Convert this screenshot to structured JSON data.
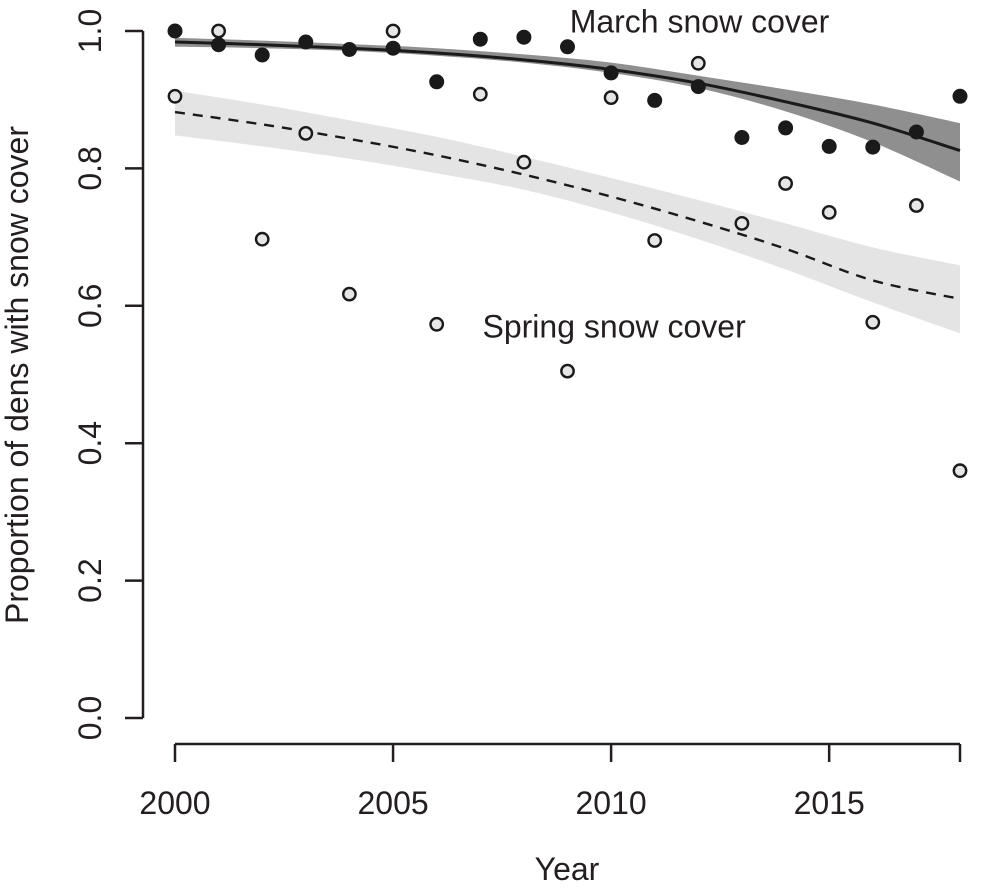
{
  "chart_data": {
    "type": "scatter",
    "title": "",
    "xlabel": "Year",
    "ylabel": "Proportion of dens with snow cover",
    "xlim": [
      2000,
      2018
    ],
    "ylim": [
      0.0,
      1.0
    ],
    "x_ticks": [
      2000,
      2005,
      2010,
      2015
    ],
    "x_tick_labels": [
      "2000",
      "2005",
      "2010",
      "2015"
    ],
    "y_ticks": [
      0.0,
      0.2,
      0.4,
      0.6,
      0.8,
      1.0
    ],
    "y_tick_labels": [
      "0.0",
      "0.2",
      "0.4",
      "0.6",
      "0.8",
      "1.0"
    ],
    "grid": false,
    "legend": "none",
    "series": [
      {
        "name": "March snow cover",
        "marker": "filled-circle",
        "color": "#1a1a1a",
        "x": [
          2000,
          2001,
          2002,
          2003,
          2004,
          2005,
          2006,
          2007,
          2008,
          2009,
          2010,
          2011,
          2012,
          2013,
          2014,
          2015,
          2016,
          2017,
          2018
        ],
        "y": [
          1.0,
          0.98,
          0.965,
          0.984,
          0.973,
          0.975,
          0.926,
          0.988,
          0.991,
          0.977,
          0.939,
          0.899,
          0.919,
          0.845,
          0.859,
          0.832,
          0.831,
          0.853,
          0.905
        ],
        "fit": {
          "style": "solid",
          "x": [
            2000,
            2002,
            2004,
            2006,
            2008,
            2010,
            2012,
            2014,
            2016,
            2018
          ],
          "y": [
            0.984,
            0.98,
            0.975,
            0.968,
            0.958,
            0.944,
            0.924,
            0.897,
            0.866,
            0.826
          ],
          "ci_lower": [
            0.977,
            0.975,
            0.971,
            0.964,
            0.954,
            0.939,
            0.917,
            0.883,
            0.838,
            0.781
          ],
          "ci_upper": [
            0.99,
            0.986,
            0.981,
            0.975,
            0.966,
            0.954,
            0.935,
            0.915,
            0.893,
            0.866
          ]
        },
        "band_color": "#8f8f8f"
      },
      {
        "name": "Spring snow cover",
        "marker": "open-circle",
        "color": "#e6e6e6",
        "x": [
          2000,
          2001,
          2002,
          2003,
          2004,
          2005,
          2006,
          2007,
          2008,
          2009,
          2010,
          2011,
          2012,
          2013,
          2014,
          2015,
          2016,
          2017,
          2018
        ],
        "y": [
          0.905,
          1.0,
          0.697,
          0.851,
          0.617,
          1.0,
          0.573,
          0.908,
          0.809,
          0.505,
          0.903,
          0.695,
          0.953,
          0.72,
          0.778,
          0.736,
          0.576,
          0.746,
          0.36
        ],
        "fit": {
          "style": "dashed",
          "x": [
            2000,
            2002,
            2004,
            2006,
            2008,
            2010,
            2012,
            2014,
            2016,
            2018
          ],
          "y": [
            0.882,
            0.864,
            0.843,
            0.819,
            0.791,
            0.759,
            0.723,
            0.683,
            0.637,
            0.61
          ],
          "ci_lower": [
            0.848,
            0.832,
            0.814,
            0.793,
            0.769,
            0.736,
            0.697,
            0.653,
            0.605,
            0.56
          ],
          "ci_upper": [
            0.913,
            0.893,
            0.87,
            0.846,
            0.817,
            0.786,
            0.754,
            0.72,
            0.685,
            0.659
          ]
        },
        "band_color": "#e4e4e4"
      }
    ],
    "annotations": [
      {
        "text": "March snow cover",
        "x": 2009.05,
        "y": 0.998
      },
      {
        "text": "Spring snow cover",
        "x": 2007.05,
        "y": 0.554
      }
    ]
  }
}
